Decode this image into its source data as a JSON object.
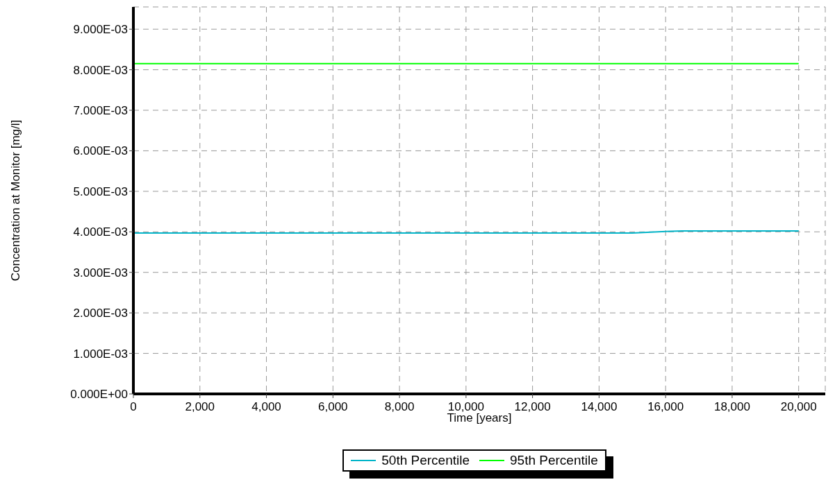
{
  "chart_data": {
    "type": "line",
    "xlabel": "Time [years]",
    "ylabel": "Concentration at Monitor [mg/l]",
    "x": [
      0,
      14000,
      15000,
      16000,
      16500,
      20000
    ],
    "series": [
      {
        "name": "50th Percentile",
        "color": "#00b4c8",
        "values": [
          0.00397,
          0.00397,
          0.00397,
          0.00401,
          0.00402,
          0.00402
        ]
      },
      {
        "name": "95th Percentile",
        "color": "#00ff00",
        "values": [
          0.00815,
          0.00815,
          0.00815,
          0.00815,
          0.00815,
          0.00815
        ]
      }
    ],
    "xlim": [
      0,
      20800
    ],
    "ylim": [
      0,
      0.00955
    ],
    "xticks": [
      0,
      {
        "value": 2000,
        "label": "2,000"
      },
      {
        "value": 4000,
        "label": "4,000"
      },
      {
        "value": 6000,
        "label": "6,000"
      },
      {
        "value": 8000,
        "label": "8,000"
      },
      {
        "value": 10000,
        "label": "10,000"
      },
      {
        "value": 12000,
        "label": "12,000"
      },
      {
        "value": 14000,
        "label": "14,000"
      },
      {
        "value": 16000,
        "label": "16,000"
      },
      {
        "value": 18000,
        "label": "18,000"
      },
      {
        "value": 20000,
        "label": "20,000"
      }
    ],
    "yticks": [
      {
        "value": 0,
        "label": "0.000E+00"
      },
      {
        "value": 0.001,
        "label": "1.000E-03"
      },
      {
        "value": 0.002,
        "label": "2.000E-03"
      },
      {
        "value": 0.003,
        "label": "3.000E-03"
      },
      {
        "value": 0.004,
        "label": "4.000E-03"
      },
      {
        "value": 0.005,
        "label": "5.000E-03"
      },
      {
        "value": 0.006,
        "label": "6.000E-03"
      },
      {
        "value": 0.007,
        "label": "7.000E-03"
      },
      {
        "value": 0.008,
        "label": "8.000E-03"
      },
      {
        "value": 0.009,
        "label": "9.000E-03"
      }
    ],
    "grid": true,
    "legend": "bottom",
    "marker": "none",
    "line_style": "solid"
  }
}
